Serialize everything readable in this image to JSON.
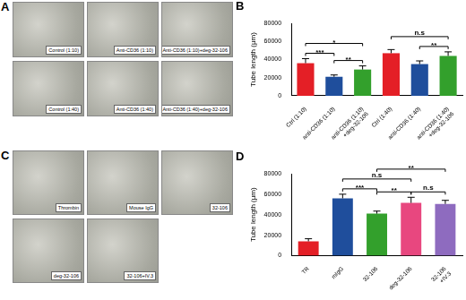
{
  "chart_data": [
    {
      "type": "bar",
      "title": "B",
      "categories": [
        "Ctrl (1:10)",
        "anti-CD36 (1:10)",
        "anti-CD36 (1:10) +deg-32-106",
        "Ctrl (1:40)",
        "anti-CD36 (1:40)",
        "anti-CD36 (1:40) +deg-32-106"
      ],
      "values": [
        36000,
        21000,
        29000,
        47000,
        35000,
        44000
      ],
      "errors": [
        5000,
        2000,
        4000,
        4000,
        3500,
        4500
      ],
      "colors": [
        "#e41f26",
        "#1f4e9c",
        "#33a02c",
        "#e41f26",
        "#1f4e9c",
        "#33a02c"
      ],
      "y_label": "Tube length (μm)",
      "ylim": [
        0,
        80000
      ],
      "yticks": [
        0,
        20000,
        40000,
        60000,
        80000
      ],
      "grid": false,
      "significance": [
        {
          "between": [
            "Ctrl (1:10)",
            "anti-CD36 (1:10)"
          ],
          "label": "***"
        },
        {
          "between": [
            "anti-CD36 (1:10)",
            "anti-CD36 (1:10) +deg-32-106"
          ],
          "label": "**"
        },
        {
          "between": [
            "Ctrl (1:10)",
            "anti-CD36 (1:10) +deg-32-106"
          ],
          "label": "*"
        },
        {
          "between": [
            "anti-CD36 (1:40)",
            "anti-CD36 (1:40) +deg-32-106"
          ],
          "label": "**"
        },
        {
          "between": [
            "Ctrl (1:40)",
            "anti-CD36 (1:40) +deg-32-106"
          ],
          "label": "n.s"
        }
      ]
    },
    {
      "type": "bar",
      "title": "D",
      "categories": [
        "TR",
        "mIgG",
        "32-106",
        "deg-32-106",
        "32-106 +IV.3"
      ],
      "values": [
        14000,
        56000,
        41000,
        51500,
        50500
      ],
      "errors": [
        2500,
        4000,
        2500,
        5500,
        3500
      ],
      "colors": [
        "#e41f26",
        "#1f4e9c",
        "#33a02c",
        "#e8477f",
        "#8e6bbf"
      ],
      "y_label": "Tube length (μm)",
      "ylim": [
        0,
        80000
      ],
      "yticks": [
        0,
        20000,
        40000,
        60000,
        80000
      ],
      "grid": false,
      "significance": [
        {
          "between": [
            "mIgG",
            "32-106"
          ],
          "label": "***"
        },
        {
          "between": [
            "32-106",
            "deg-32-106"
          ],
          "label": "**"
        },
        {
          "between": [
            "deg-32-106",
            "32-106 +IV.3"
          ],
          "label": "n.s"
        },
        {
          "between": [
            "mIgG",
            "deg-32-106"
          ],
          "label": "n.s"
        },
        {
          "between": [
            "32-106",
            "32-106 +IV.3"
          ],
          "label": "**"
        }
      ]
    }
  ],
  "images": [
    {
      "panel": "A",
      "rows": [
        [
          "Control (1:10)",
          "Anti-CD36 (1:10)",
          "Anti-CD36 (1:10)+deg-32-106"
        ],
        [
          "Control (1:40)",
          "Anti-CD36 (1:40)",
          "Anti-CD36 (1:40)+deg-32-106"
        ]
      ]
    },
    {
      "panel": "C",
      "rows": [
        [
          "Thrombin",
          "Mouse IgG",
          "32-106"
        ],
        [
          "deg-32-106",
          "32-106+IV.3"
        ]
      ]
    }
  ]
}
